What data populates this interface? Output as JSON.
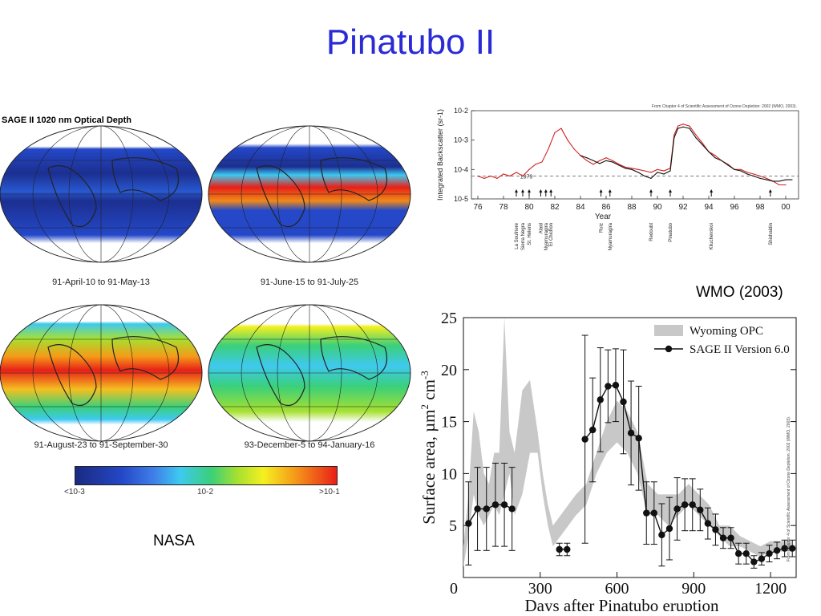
{
  "slide": {
    "title": "Pinatubo II",
    "credit_nasa": "NASA",
    "credit_wmo": "WMO (2003)"
  },
  "maps": {
    "heading": "SAGE II 1020 nm Optical Depth",
    "captions": [
      "91-April-10 to 91-May-13",
      "91-June-15 to 91-July-25",
      "91-August-23 to 91-September-30",
      "93-December-5 to 94-January-16"
    ],
    "colorbar_labels": [
      "<10-3",
      "10-2",
      ">10-1"
    ],
    "colors": [
      "#1a2a80",
      "#2448c8",
      "#3ec9f0",
      "#3ad07a",
      "#f5f020",
      "#f59a18",
      "#e82018"
    ]
  },
  "chart_data": [
    {
      "type": "line",
      "ylabel": "Integrated Backscatter (sr-1)",
      "xlabel": "Year",
      "note": "From Chapter 4 of Scientific Assessment of Ozone Depletion: 2002 (WMO, 2003).",
      "y_scale": "log",
      "ylim": [
        1e-05,
        0.01
      ],
      "xlim": [
        75.5,
        101
      ],
      "y_tick_labels": [
        "10-2",
        "10-3",
        "10-4",
        "10-5"
      ],
      "x_ticks": [
        "76",
        "78",
        "80",
        "82",
        "84",
        "86",
        "88",
        "90",
        "92",
        "94",
        "96",
        "98",
        "00"
      ],
      "reference_label": "1979",
      "reference_value": 6e-05,
      "series": [
        {
          "color": "#d42020",
          "x": [
            76,
            76.5,
            77,
            77.5,
            78,
            78.5,
            79,
            79.5,
            80,
            80.5,
            81,
            81.5,
            82,
            82.5,
            83,
            83.5,
            84,
            84.5,
            85,
            85.5,
            86,
            86.5,
            87,
            87.5,
            88,
            88.5,
            89,
            89.5,
            90,
            90.5,
            91,
            91.3,
            91.6,
            92,
            92.5,
            93,
            93.5,
            94,
            94.5,
            95,
            95.5,
            96,
            96.5,
            97,
            97.5,
            98,
            98.5,
            99,
            99.5,
            100
          ],
          "y": [
            6e-05,
            5e-05,
            6e-05,
            5e-05,
            7e-05,
            6e-05,
            8e-05,
            6e-05,
            0.0001,
            0.00015,
            0.00018,
            0.0005,
            0.0018,
            0.0025,
            0.001,
            0.0005,
            0.0003,
            0.0002,
            0.00015,
            0.0002,
            0.00025,
            0.0002,
            0.00015,
            0.00012,
            0.00011,
            0.0001,
            9e-05,
            8e-05,
            0.0001,
            9e-05,
            0.00011,
            0.0015,
            0.003,
            0.0035,
            0.003,
            0.0015,
            0.0008,
            0.0004,
            0.0003,
            0.0002,
            0.00015,
            0.0001,
            0.0001,
            8e-05,
            7e-05,
            6e-05,
            5e-05,
            4e-05,
            3e-05,
            3e-05
          ]
        },
        {
          "color": "#111111",
          "x": [
            84,
            84.5,
            85,
            85.5,
            86,
            86.5,
            87,
            87.5,
            88,
            88.5,
            89,
            89.5,
            90,
            90.5,
            91,
            91.3,
            91.6,
            92,
            92.5,
            93,
            93.5,
            94,
            94.5,
            95,
            95.5,
            96,
            96.5,
            97,
            97.5,
            98,
            98.5,
            99,
            99.5,
            100,
            100.5
          ],
          "y": [
            0.0003,
            0.00025,
            0.0002,
            0.00016,
            0.0002,
            0.00018,
            0.00014,
            0.00011,
            0.0001,
            8e-05,
            6e-05,
            5e-05,
            8e-05,
            7e-05,
            9e-05,
            0.0012,
            0.0025,
            0.0028,
            0.0025,
            0.0012,
            0.0007,
            0.0004,
            0.00025,
            0.0002,
            0.00014,
            0.0001,
            9e-05,
            7e-05,
            6e-05,
            5e-05,
            4.5e-05,
            4e-05,
            4e-05,
            4.5e-05,
            4.5e-05
          ]
        }
      ],
      "events": [
        {
          "year": 79.0,
          "label": "La Soufriere"
        },
        {
          "year": 79.5,
          "label": "Sierra Negra"
        },
        {
          "year": 80.0,
          "label": "St. Helens"
        },
        {
          "year": 80.9,
          "label": "Alaid"
        },
        {
          "year": 81.3,
          "label": "Nyamuragira"
        },
        {
          "year": 81.7,
          "label": "El Chichon"
        },
        {
          "year": 85.6,
          "label": "Ruiz"
        },
        {
          "year": 86.3,
          "label": "Nyamuragira"
        },
        {
          "year": 89.5,
          "label": "Redoubt"
        },
        {
          "year": 91.0,
          "label": "Pinatubo"
        },
        {
          "year": 94.2,
          "label": "Kliuchevskoi"
        },
        {
          "year": 98.8,
          "label": "Shishaldin"
        }
      ]
    },
    {
      "type": "scatter",
      "xlabel": "Days after Pinatubo eruption",
      "ylabel": "Surface area, µm2 cm-3",
      "ylabel_parts": [
        "Surface area, µm",
        "2",
        " cm",
        "-3"
      ],
      "xlim": [
        0,
        1300
      ],
      "ylim": [
        0,
        25
      ],
      "x_ticks": [
        0,
        300,
        600,
        900,
        1200
      ],
      "y_ticks": [
        5,
        10,
        15,
        20,
        25
      ],
      "note": "From Chapter 4 of Scientific Assessment of Ozone Depletion: 2002 (WMO, 2003).",
      "legend": [
        "Wyoming OPC",
        "SAGE II Version 6.0"
      ],
      "band": {
        "color": "#c8c8c8",
        "x": [
          0,
          20,
          40,
          60,
          80,
          100,
          120,
          140,
          160,
          180,
          200,
          230,
          260,
          290,
          310,
          330,
          350,
          380,
          410,
          440,
          480,
          520,
          560,
          600,
          640,
          680,
          720,
          760,
          800,
          840,
          880,
          920,
          960,
          1000,
          1040,
          1080,
          1120,
          1160,
          1200,
          1240,
          1280
        ],
        "low": [
          1,
          4,
          8,
          6,
          5,
          6,
          7,
          6,
          8,
          10,
          6,
          8,
          12,
          12,
          8,
          5,
          3,
          4,
          5,
          6,
          7,
          10,
          12,
          13,
          12,
          10,
          6,
          6,
          5,
          6,
          7,
          6,
          5,
          4,
          3,
          3,
          2.5,
          2,
          2.5,
          2.5,
          2.5
        ],
        "high": [
          3,
          8,
          16,
          14,
          10,
          9,
          12,
          12,
          25,
          14,
          12,
          18,
          19,
          14,
          10,
          7,
          5,
          6,
          7,
          8,
          9,
          12,
          15,
          17,
          16,
          14,
          9,
          8,
          8,
          8,
          9,
          8,
          7,
          5,
          5,
          4,
          3.5,
          3,
          3.5,
          3.5,
          3.5
        ]
      },
      "series": [
        {
          "name": "SAGE II Version 6.0",
          "segments": [
            {
              "x": [
                20,
                55,
                90,
                125,
                160,
                190
              ],
              "y": [
                5.2,
                6.6,
                6.6,
                7,
                7,
                6.6
              ],
              "err": [
                4,
                4,
                4,
                4,
                4,
                4
              ]
            },
            {
              "x": [
                375,
                405
              ],
              "y": [
                2.7,
                2.7
              ],
              "err": [
                0.6,
                0.6
              ]
            },
            {
              "x": [
                475,
                505,
                535,
                565,
                595,
                625,
                655,
                685,
                715,
                745,
                775,
                805,
                835,
                865,
                895,
                925,
                955,
                985,
                1015,
                1045,
                1075,
                1105,
                1135,
                1165,
                1195,
                1225,
                1255,
                1285
              ],
              "y": [
                13.3,
                14.2,
                17.1,
                18.4,
                18.5,
                16.9,
                13.9,
                13.4,
                6.2,
                6.2,
                4.1,
                4.7,
                6.6,
                7,
                7,
                6.5,
                5.2,
                4.6,
                3.8,
                3.8,
                2.3,
                2.3,
                1.5,
                1.8,
                2.3,
                2.6,
                2.8,
                2.8
              ],
              "err": [
                10,
                5,
                5,
                3.5,
                3.5,
                5,
                5,
                5,
                3,
                3,
                3,
                3,
                3,
                2.5,
                2.5,
                2,
                1.5,
                1.5,
                1,
                1,
                1,
                1,
                0.6,
                0.6,
                0.8,
                0.8,
                0.8,
                0.8
              ]
            }
          ]
        }
      ]
    }
  ]
}
